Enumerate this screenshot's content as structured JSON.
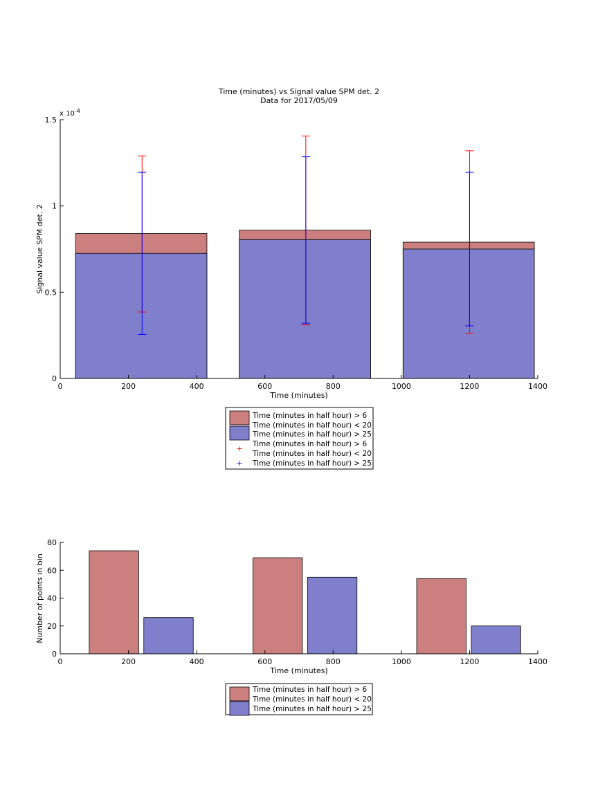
{
  "chart_data": [
    {
      "type": "bar",
      "title": "Time (minutes) vs Signal value SPM det. 2",
      "subtitle": "Data for 2017/05/09",
      "xlabel": "Time (minutes)",
      "ylabel": "Signal value SPM det. 2",
      "y_exponent_label": "x 10",
      "y_exponent_power": "-4",
      "xlim": [
        0,
        1400
      ],
      "ylim": [
        0,
        1.5
      ],
      "xticks": [
        0,
        200,
        400,
        600,
        800,
        1000,
        1200,
        1400
      ],
      "yticks": [
        0,
        0.5,
        1,
        1.5
      ],
      "ytick_labels": [
        "0",
        "0.5",
        "1",
        "1.5"
      ],
      "grid": false,
      "legend_placement": "below",
      "bins": [
        {
          "x_start": 45,
          "x_end": 430,
          "center": 240
        },
        {
          "x_start": 525,
          "x_end": 910,
          "center": 720
        },
        {
          "x_start": 1005,
          "x_end": 1390,
          "center": 1200
        }
      ],
      "series": [
        {
          "name": "Time (minutes in half hour) > 6\nTime (minutes in half hour) < 20",
          "color": "#cc7f7f",
          "values": [
            0.84,
            0.86,
            0.79
          ]
        },
        {
          "name": "Time (minutes in half hour) > 25",
          "color": "#7f7fcc",
          "values": [
            0.725,
            0.805,
            0.75
          ]
        }
      ],
      "error_bars": [
        {
          "name": "Time (minutes in half hour) > 6\nTime (minutes in half hour) < 20",
          "color": "#ff0000",
          "low": [
            0.385,
            0.31,
            0.26
          ],
          "high": [
            1.29,
            1.405,
            1.32
          ]
        },
        {
          "name": "Time (minutes in half hour) > 25",
          "color": "#0000ff",
          "low": [
            0.255,
            0.32,
            0.305
          ],
          "high": [
            1.195,
            1.285,
            1.195
          ]
        }
      ]
    },
    {
      "type": "bar",
      "xlabel": "Time (minutes)",
      "ylabel": "Number of points in bin",
      "xlim": [
        0,
        1400
      ],
      "ylim": [
        0,
        80
      ],
      "xticks": [
        0,
        200,
        400,
        600,
        800,
        1000,
        1200,
        1400
      ],
      "yticks": [
        0,
        20,
        40,
        60,
        80
      ],
      "grid": false,
      "legend_placement": "below",
      "series": [
        {
          "name": "Time (minutes in half hour) > 6\nTime (minutes in half hour) < 20",
          "color": "#cc7f7f",
          "bars": [
            {
              "x_start": 85,
              "x_end": 230,
              "value": 74
            },
            {
              "x_start": 565,
              "x_end": 710,
              "value": 69
            },
            {
              "x_start": 1045,
              "x_end": 1190,
              "value": 54
            }
          ]
        },
        {
          "name": "Time (minutes in half hour) > 25",
          "color": "#7f7fcc",
          "bars": [
            {
              "x_start": 245,
              "x_end": 390,
              "value": 26
            },
            {
              "x_start": 725,
              "x_end": 870,
              "value": 55
            },
            {
              "x_start": 1205,
              "x_end": 1350,
              "value": 20
            }
          ]
        }
      ]
    }
  ],
  "legend_top": {
    "patch1_line1": "Time (minutes in half hour) > 6",
    "patch1_line2": "Time (minutes in half hour) < 20",
    "patch2": "Time (minutes in half hour) > 25",
    "marker_symbol": "+",
    "err1_line1": "Time (minutes in half hour) > 6",
    "err1_line2": "Time (minutes in half hour) < 20",
    "err2": "Time (minutes in half hour) > 25"
  },
  "legend_bottom": {
    "patch1_line1": "Time (minutes in half hour) > 6",
    "patch1_line2": "Time (minutes in half hour) < 20",
    "patch2": "Time (minutes in half hour) > 25"
  }
}
